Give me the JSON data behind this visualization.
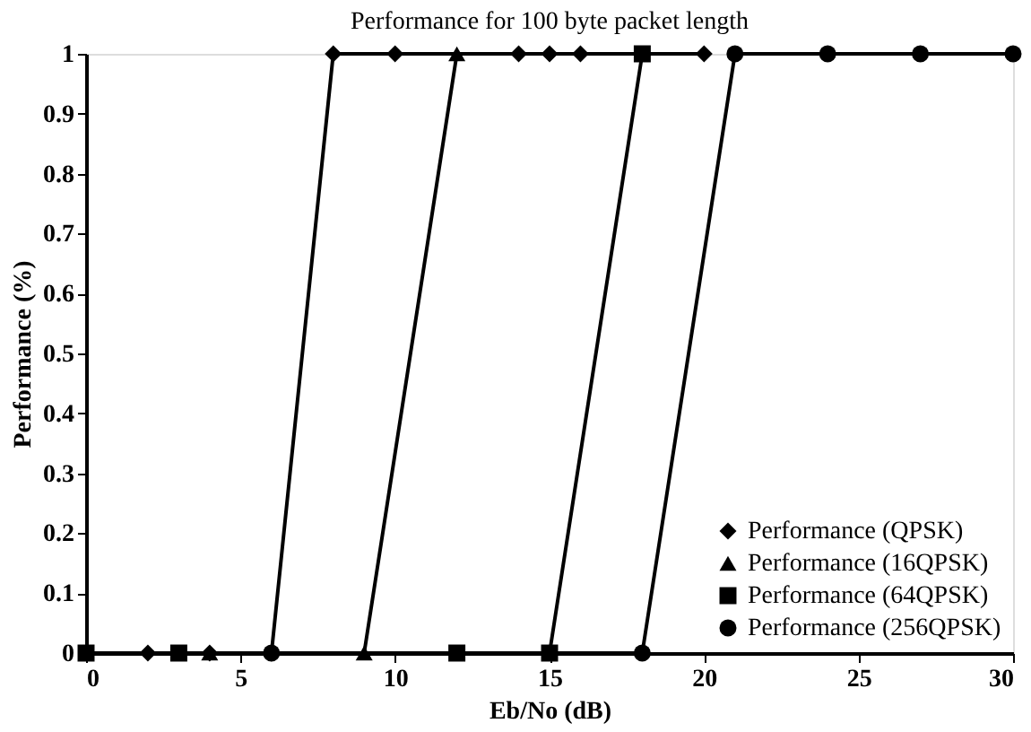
{
  "chart_data": {
    "type": "line",
    "title": "Performance for 100 byte packet length",
    "xlabel": "Eb/No (dB)",
    "ylabel": "Performance (%)",
    "xlim": [
      0,
      30
    ],
    "xticks": [
      0,
      5,
      10,
      15,
      20,
      25,
      30
    ],
    "ylim": [
      0,
      1
    ],
    "yticks": [
      0,
      0.1,
      0.2,
      0.3,
      0.4,
      0.5,
      0.6,
      0.7,
      0.8,
      0.9,
      1
    ],
    "grid": false,
    "legend": "bottom right",
    "series": [
      {
        "name": "Performance (QPSK)",
        "color": "#000000",
        "marker": "diamond",
        "x": [
          2,
          4,
          6,
          8,
          10,
          14,
          15,
          16,
          20
        ],
        "values": [
          0,
          0,
          0,
          1,
          1,
          1,
          1,
          1,
          1
        ]
      },
      {
        "name": "Performance (16QPSK)",
        "color": "#000000",
        "marker": "triangle",
        "x": [
          4,
          9,
          12
        ],
        "values": [
          0,
          0,
          1
        ]
      },
      {
        "name": "Performance (64QPSK)",
        "color": "#000000",
        "marker": "square",
        "x": [
          0,
          3,
          12,
          15,
          18
        ],
        "values": [
          0,
          0,
          0,
          0,
          1
        ]
      },
      {
        "name": "Performance (256QPSK)",
        "color": "#000000",
        "marker": "circle",
        "x": [
          6,
          18,
          21,
          24,
          27,
          30
        ],
        "values": [
          0,
          0,
          1,
          1,
          1,
          1
        ]
      }
    ]
  }
}
